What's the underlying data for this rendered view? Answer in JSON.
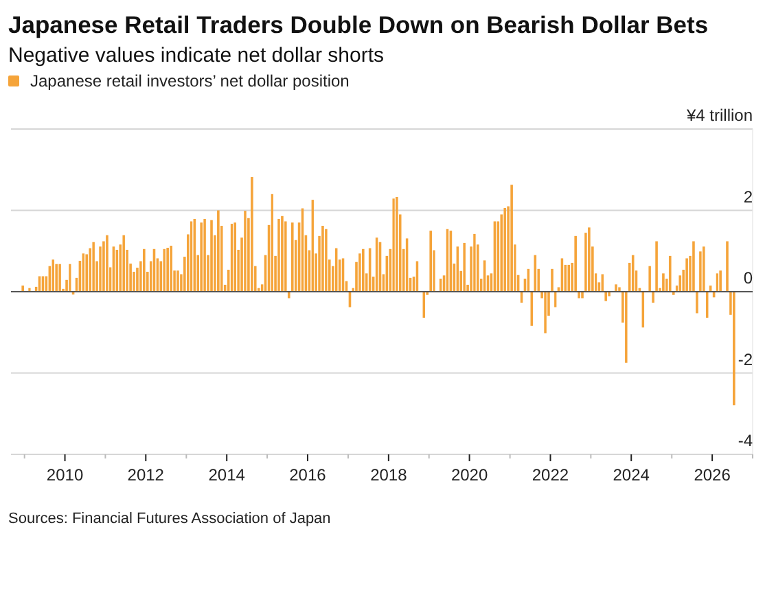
{
  "chart_data": {
    "type": "bar",
    "title": "Japanese Retail Traders Double Down on Bearish Dollar Bets",
    "subtitle": "Negative values indicate net dollar shorts",
    "annotations": [
      "Sources: Financial Futures Association of Japan"
    ],
    "legend": "top left",
    "grid": "y",
    "xlim": [
      "2008-09",
      "2027-01"
    ],
    "xticks": [
      {
        "value": "2009",
        "label": null
      },
      "2010",
      {
        "value": "2011",
        "label": null
      },
      "2012",
      {
        "value": "2013",
        "label": null
      },
      "2014",
      {
        "value": "2015",
        "label": null
      },
      "2016",
      {
        "value": "2017",
        "label": null
      },
      "2018",
      {
        "value": "2019",
        "label": null
      },
      "2020",
      {
        "value": "2021",
        "label": null
      },
      "2022",
      {
        "value": "2023",
        "label": null
      },
      "2024",
      {
        "value": "2025",
        "label": null
      },
      "2026",
      {
        "value": "2027",
        "label": null
      }
    ],
    "ylim": [
      -4,
      4
    ],
    "yticks": [
      -4,
      -2,
      0,
      2,
      {
        "value": 4,
        "label": "¥4 trillion"
      }
    ],
    "x": [
      "2008-12",
      "2009-01",
      "2009-02",
      "2009-03",
      "2009-04",
      "2009-05",
      "2009-06",
      "2009-07",
      "2009-08",
      "2009-09",
      "2009-10",
      "2009-11",
      "2009-12",
      "2010-01",
      "2010-02",
      "2010-03",
      "2010-04",
      "2010-05",
      "2010-06",
      "2010-07",
      "2010-08",
      "2010-09",
      "2010-10",
      "2010-11",
      "2010-12",
      "2011-01",
      "2011-02",
      "2011-03",
      "2011-04",
      "2011-05",
      "2011-06",
      "2011-07",
      "2011-08",
      "2011-09",
      "2011-10",
      "2011-11",
      "2011-12",
      "2012-01",
      "2012-02",
      "2012-03",
      "2012-04",
      "2012-05",
      "2012-06",
      "2012-07",
      "2012-08",
      "2012-09",
      "2012-10",
      "2012-11",
      "2012-12",
      "2013-01",
      "2013-02",
      "2013-03",
      "2013-04",
      "2013-05",
      "2013-06",
      "2013-07",
      "2013-08",
      "2013-09",
      "2013-10",
      "2013-11",
      "2013-12",
      "2014-01",
      "2014-02",
      "2014-03",
      "2014-04",
      "2014-05",
      "2014-06",
      "2014-07",
      "2014-08",
      "2014-09",
      "2014-10",
      "2014-11",
      "2014-12",
      "2015-01",
      "2015-02",
      "2015-03",
      "2015-04",
      "2015-05",
      "2015-06",
      "2015-07",
      "2015-08",
      "2015-09",
      "2015-10",
      "2015-11",
      "2015-12",
      "2016-01",
      "2016-02",
      "2016-03",
      "2016-04",
      "2016-05",
      "2016-06",
      "2016-07",
      "2016-08",
      "2016-09",
      "2016-10",
      "2016-11",
      "2016-12",
      "2017-01",
      "2017-02",
      "2017-03",
      "2017-04",
      "2017-05",
      "2017-06",
      "2017-07",
      "2017-08",
      "2017-09",
      "2017-10",
      "2017-11",
      "2017-12",
      "2018-01",
      "2018-02",
      "2018-03",
      "2018-04",
      "2018-05",
      "2018-06",
      "2018-07",
      "2018-08",
      "2018-09",
      "2018-10",
      "2018-11",
      "2018-12",
      "2019-01",
      "2019-02",
      "2019-03",
      "2019-04",
      "2019-05",
      "2019-06",
      "2019-07",
      "2019-08",
      "2019-09",
      "2019-10",
      "2019-11",
      "2019-12",
      "2020-01",
      "2020-02",
      "2020-03",
      "2020-04",
      "2020-05",
      "2020-06",
      "2020-07",
      "2020-08",
      "2020-09",
      "2020-10",
      "2020-11",
      "2020-12",
      "2021-01",
      "2021-02",
      "2021-03",
      "2021-04",
      "2021-05",
      "2021-06",
      "2021-07",
      "2021-08",
      "2021-09",
      "2021-10",
      "2021-11",
      "2021-12",
      "2022-01",
      "2022-02",
      "2022-03",
      "2022-04",
      "2022-05",
      "2022-06",
      "2022-07",
      "2022-08",
      "2022-09",
      "2022-10",
      "2022-11",
      "2022-12",
      "2023-01",
      "2023-02",
      "2023-03",
      "2023-04",
      "2023-05",
      "2023-06",
      "2023-07",
      "2023-08",
      "2023-09",
      "2023-10",
      "2023-11",
      "2023-12",
      "2024-01",
      "2024-02",
      "2024-03",
      "2024-04",
      "2024-05",
      "2024-06",
      "2024-07",
      "2024-08",
      "2024-09",
      "2024-10",
      "2024-11",
      "2024-12",
      "2025-01",
      "2025-02",
      "2025-03",
      "2025-04",
      "2025-05",
      "2025-06",
      "2025-07",
      "2025-08",
      "2025-09",
      "2025-10",
      "2025-11",
      "2025-12",
      "2026-01",
      "2026-02",
      "2026-03",
      "2026-04",
      "2026-05",
      "2026-06",
      "2026-07"
    ],
    "series": [
      {
        "name": "Japanese retail investors’ net dollar position",
        "color": "#f5a43a",
        "values": [
          0.15,
          0,
          0.09,
          null,
          0.12,
          0.38,
          0.38,
          0.38,
          0.63,
          0.79,
          0.68,
          0.68,
          0.07,
          0.29,
          0.68,
          -0.07,
          0.34,
          0.76,
          0.94,
          0.92,
          1.07,
          1.22,
          0.75,
          1.11,
          1.24,
          1.39,
          0.6,
          1.11,
          1.03,
          1.16,
          1.39,
          1.03,
          0.69,
          0.49,
          0.59,
          0.75,
          1.05,
          0.49,
          0.75,
          1.05,
          0.82,
          0.75,
          1.05,
          1.08,
          1.13,
          0.52,
          0.52,
          0.43,
          0.86,
          1.41,
          1.73,
          1.79,
          0.9,
          1.7,
          1.79,
          0.9,
          1.76,
          1.39,
          2.0,
          1.62,
          0.17,
          0.54,
          1.67,
          1.7,
          1.03,
          1.33,
          1.99,
          1.81,
          2.82,
          0.63,
          0.09,
          0.18,
          0.9,
          1.64,
          2.4,
          0.88,
          1.79,
          1.86,
          1.73,
          -0.16,
          1.7,
          1.27,
          1.7,
          2.05,
          1.39,
          1.02,
          2.26,
          0.94,
          1.37,
          1.62,
          1.54,
          0.79,
          0.63,
          1.07,
          0.79,
          0.82,
          0.26,
          -0.38,
          0.09,
          0.73,
          0.94,
          1.05,
          0.45,
          1.07,
          0.37,
          1.33,
          1.22,
          0.43,
          0.88,
          1.05,
          2.29,
          2.33,
          1.9,
          1.05,
          1.31,
          0.34,
          0.37,
          0.75,
          null,
          -0.64,
          -0.08,
          1.5,
          1.02,
          0,
          0.32,
          0.4,
          1.54,
          1.5,
          0.69,
          1.11,
          0.51,
          1.2,
          0.17,
          1.11,
          1.42,
          1.16,
          0.32,
          0.77,
          0.4,
          0.45,
          1.73,
          1.73,
          1.9,
          2.06,
          2.1,
          2.63,
          1.16,
          0.41,
          -0.27,
          0.32,
          0.56,
          -0.84,
          0.9,
          0.56,
          -0.16,
          -1.02,
          -0.59,
          0.56,
          -0.38,
          0.11,
          0.82,
          0.66,
          0.66,
          0.71,
          1.37,
          -0.16,
          -0.16,
          1.45,
          1.58,
          1.11,
          0.45,
          0.23,
          0.43,
          -0.23,
          -0.11,
          0,
          0.18,
          0.11,
          -0.76,
          -1.75,
          0.71,
          0.9,
          0.52,
          0.09,
          -0.88,
          0,
          0.63,
          -0.27,
          1.24,
          0.09,
          0.45,
          0.32,
          0.88,
          -0.08,
          0.15,
          0.4,
          0.54,
          0.82,
          0.88,
          1.24,
          -0.53,
          0.99,
          1.11,
          -0.64,
          0.15,
          -0.14,
          0.45,
          0.52,
          0,
          1.24,
          -0.57,
          -2.79
        ]
      }
    ]
  }
}
